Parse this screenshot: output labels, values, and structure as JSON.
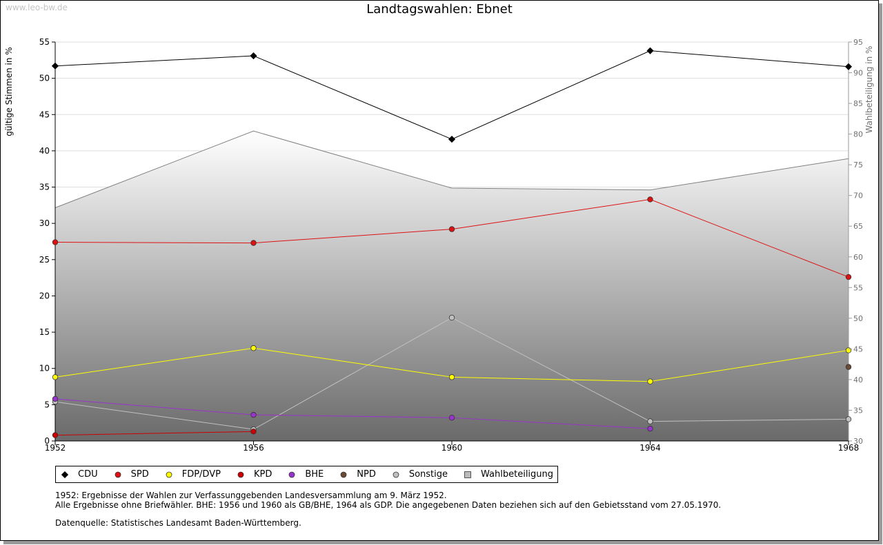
{
  "watermark": "www.leo-bw.de",
  "chart_data": {
    "type": "line",
    "title": "Landtagswahlen: Ebnet",
    "ylabel": "gültige Stimmen in %",
    "y2label": "Wahlbeteiligung in %",
    "x": [
      "1952",
      "1956",
      "1960",
      "1964",
      "1968"
    ],
    "ylim": [
      0,
      55
    ],
    "y2lim": [
      30,
      95
    ],
    "yticks": [
      0,
      5,
      10,
      15,
      20,
      25,
      30,
      35,
      40,
      45,
      50,
      55
    ],
    "y2ticks": [
      30,
      35,
      40,
      45,
      50,
      55,
      60,
      65,
      70,
      75,
      80,
      85,
      90,
      95
    ],
    "grid": true,
    "legend_position": "bottom",
    "series": [
      {
        "name": "CDU",
        "color": "#000000",
        "marker": "diamond",
        "values": [
          51.7,
          53.1,
          41.6,
          53.8,
          51.6
        ]
      },
      {
        "name": "SPD",
        "color": "#dd1111",
        "marker": "circle",
        "values": [
          27.4,
          27.3,
          29.2,
          33.3,
          22.6
        ]
      },
      {
        "name": "FDP/DVP",
        "color": "#ffff00",
        "marker": "circle",
        "values": [
          8.8,
          12.8,
          8.8,
          8.2,
          12.5
        ]
      },
      {
        "name": "KPD",
        "color": "#cc0000",
        "marker": "circle",
        "values": [
          0.8,
          1.3,
          null,
          null,
          null
        ]
      },
      {
        "name": "BHE",
        "color": "#9933cc",
        "marker": "circle",
        "values": [
          5.8,
          3.6,
          3.2,
          1.7,
          null
        ]
      },
      {
        "name": "NPD",
        "color": "#6b4a33",
        "marker": "circle",
        "values": [
          null,
          null,
          null,
          null,
          10.2
        ]
      },
      {
        "name": "Sonstige",
        "color": "#c0c0c0",
        "marker": "circle",
        "values": [
          5.4,
          1.6,
          17.0,
          2.7,
          3.0
        ]
      },
      {
        "name": "Wahlbeteiligung",
        "color": "#808080",
        "marker": "square",
        "axis": "right",
        "type": "area",
        "values": [
          68.0,
          80.5,
          71.2,
          70.9,
          76.0
        ]
      }
    ]
  },
  "notes": {
    "line1": "1952: Ergebnisse der Wahlen zur Verfassunggebenden Landesversammlung am 9. März 1952.",
    "line2": "Alle Ergebnisse ohne Briefwähler. BHE: 1956 und 1960 als GB/BHE, 1964 als GDP. Die angegebenen Daten beziehen sich auf den Gebietsstand vom 27.05.1970.",
    "source": "Datenquelle: Statistisches Landesamt Baden-Württemberg."
  }
}
